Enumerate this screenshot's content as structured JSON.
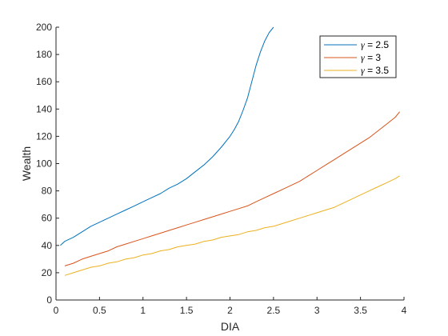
{
  "chart_data": {
    "type": "line",
    "title": "",
    "xlabel": "DIA",
    "ylabel": "Wealth",
    "xlim": [
      0,
      4
    ],
    "ylim": [
      0,
      200
    ],
    "x_ticks": [
      0,
      0.5,
      1,
      1.5,
      2,
      2.5,
      3,
      3.5,
      4
    ],
    "x_tick_labels": [
      "0",
      "0.5",
      "1",
      "1.5",
      "2",
      "2.5",
      "3",
      "3.5",
      "4"
    ],
    "y_ticks": [
      0,
      20,
      40,
      60,
      80,
      100,
      120,
      140,
      160,
      180,
      200
    ],
    "y_tick_labels": [
      "0",
      "20",
      "40",
      "60",
      "80",
      "100",
      "120",
      "140",
      "160",
      "180",
      "200"
    ],
    "grid": false,
    "legend_position": "top-right",
    "legend_symbol": "γ",
    "series": [
      {
        "name": "γ = 2.5",
        "legend_value": "= 2.5",
        "color": "#0072BD",
        "x": [
          0.05,
          0.1,
          0.2,
          0.3,
          0.4,
          0.5,
          0.6,
          0.7,
          0.8,
          0.9,
          1.0,
          1.1,
          1.2,
          1.3,
          1.4,
          1.5,
          1.6,
          1.7,
          1.8,
          1.9,
          2.0,
          2.05,
          2.1,
          2.15,
          2.2,
          2.25,
          2.3,
          2.35,
          2.4,
          2.45,
          2.5
        ],
        "y": [
          40,
          43,
          46,
          50,
          54,
          57,
          60,
          63,
          66,
          69,
          72,
          75,
          78,
          82,
          85,
          89,
          94,
          99,
          105,
          112,
          120,
          125,
          131,
          139,
          148,
          160,
          172,
          182,
          190,
          196,
          200
        ]
      },
      {
        "name": "γ = 3",
        "legend_value": "= 3",
        "color": "#D95319",
        "x": [
          0.1,
          0.2,
          0.3,
          0.4,
          0.5,
          0.6,
          0.7,
          0.8,
          0.9,
          1.0,
          1.1,
          1.2,
          1.3,
          1.4,
          1.5,
          1.6,
          1.7,
          1.8,
          1.9,
          2.0,
          2.1,
          2.2,
          2.3,
          2.4,
          2.5,
          2.6,
          2.7,
          2.8,
          2.9,
          3.0,
          3.1,
          3.2,
          3.3,
          3.4,
          3.5,
          3.6,
          3.7,
          3.8,
          3.9,
          3.95
        ],
        "y": [
          25,
          27,
          30,
          32,
          34,
          36,
          39,
          41,
          43,
          45,
          47,
          49,
          51,
          53,
          55,
          57,
          59,
          61,
          63,
          65,
          67,
          69,
          72,
          75,
          78,
          81,
          84,
          87,
          91,
          95,
          99,
          103,
          107,
          111,
          115,
          119,
          124,
          129,
          134,
          138
        ]
      },
      {
        "name": "γ = 3.5",
        "legend_value": "= 3.5",
        "color": "#EDB120",
        "x": [
          0.1,
          0.2,
          0.3,
          0.4,
          0.5,
          0.6,
          0.7,
          0.8,
          0.9,
          1.0,
          1.1,
          1.2,
          1.3,
          1.4,
          1.5,
          1.6,
          1.7,
          1.8,
          1.9,
          2.0,
          2.1,
          2.2,
          2.3,
          2.4,
          2.5,
          2.6,
          2.7,
          2.8,
          2.9,
          3.0,
          3.1,
          3.2,
          3.3,
          3.4,
          3.5,
          3.6,
          3.7,
          3.8,
          3.9,
          3.95
        ],
        "y": [
          18,
          20,
          22,
          24,
          25,
          27,
          28,
          30,
          31,
          33,
          34,
          36,
          37,
          39,
          40,
          41,
          43,
          44,
          46,
          47,
          48,
          50,
          51,
          53,
          54,
          56,
          58,
          60,
          62,
          64,
          66,
          68,
          71,
          74,
          77,
          80,
          83,
          86,
          89,
          91
        ]
      }
    ]
  }
}
